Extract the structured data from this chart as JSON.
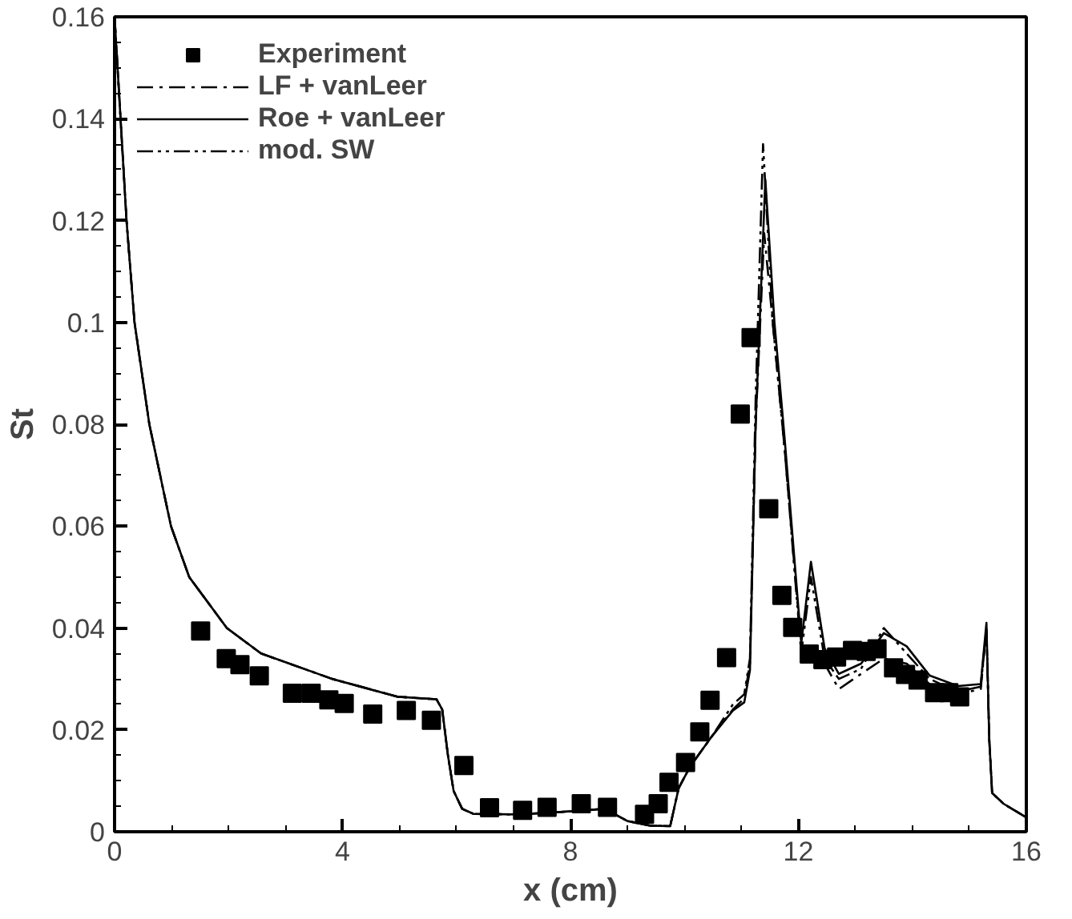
{
  "chart_data": {
    "type": "line",
    "xlabel": "x (cm)",
    "ylabel": "St",
    "xlim": [
      0,
      16
    ],
    "ylim": [
      0,
      0.16
    ],
    "xticks": [
      0,
      4,
      8,
      12,
      16
    ],
    "yticks": [
      0,
      0.02,
      0.04,
      0.06,
      0.08,
      {
        "value": 0.1,
        "label": "0.1"
      },
      0.12,
      0.14,
      0.16
    ],
    "grid": false,
    "legend": "top left",
    "series": [
      {
        "name": "Experiment",
        "type": "scatter",
        "marker": "square",
        "color": "#000000",
        "x": [
          1.51,
          1.96,
          2.2,
          2.54,
          3.12,
          3.45,
          3.76,
          4.03,
          4.53,
          5.12,
          5.56,
          6.13,
          6.58,
          7.16,
          7.59,
          8.19,
          8.65,
          9.3,
          9.54,
          9.73,
          10.02,
          10.27,
          10.45,
          10.74,
          10.98,
          11.17,
          11.48,
          11.71,
          11.9,
          12.19,
          12.43,
          12.67,
          12.95,
          13.19,
          13.38,
          13.67,
          13.88,
          14.1,
          14.39,
          14.64,
          14.83
        ],
        "values": [
          0.0394,
          0.034,
          0.0328,
          0.0306,
          0.0272,
          0.0272,
          0.0259,
          0.0252,
          0.0231,
          0.0238,
          0.0219,
          0.013,
          0.0047,
          0.0042,
          0.0048,
          0.0055,
          0.0048,
          0.0034,
          0.0055,
          0.0097,
          0.0136,
          0.0196,
          0.0258,
          0.0342,
          0.082,
          0.097,
          0.0634,
          0.0464,
          0.0401,
          0.0349,
          0.0338,
          0.0343,
          0.0356,
          0.0354,
          0.0359,
          0.0322,
          0.0309,
          0.0298,
          0.0273,
          0.0273,
          0.0265
        ]
      },
      {
        "name": "LF + vanLeer",
        "line_style": "dashdot",
        "color": "#000000",
        "x": [
          0,
          0.21,
          0.35,
          0.61,
          0.99,
          1.31,
          1.97,
          2.57,
          3.82,
          4.97,
          5.65,
          5.75,
          5.85,
          5.95,
          6.1,
          6.3,
          7.1,
          8.0,
          8.6,
          9.0,
          9.4,
          9.75,
          9.9,
          10.1,
          10.5,
          10.85,
          11.05,
          11.15,
          11.25,
          11.4,
          11.55,
          11.76,
          12.05,
          12.22,
          12.46,
          12.71,
          13.1,
          13.5,
          13.9,
          14.3,
          14.8,
          15.2,
          15.3,
          15.35,
          15.4,
          15.6,
          16
        ],
        "values": [
          0.16,
          0.12,
          0.1,
          0.08,
          0.06,
          0.05,
          0.04,
          0.035,
          0.03,
          0.0265,
          0.026,
          0.024,
          0.015,
          0.008,
          0.0045,
          0.0035,
          0.0034,
          0.004,
          0.0045,
          0.0021,
          0.0012,
          0.0011,
          0.0086,
          0.0128,
          0.019,
          0.024,
          0.0262,
          0.033,
          0.08,
          0.1175,
          0.1,
          0.075,
          0.036,
          0.035,
          0.033,
          0.028,
          0.031,
          0.034,
          0.033,
          0.029,
          0.027,
          0.028,
          0.04,
          0.018,
          0.0076,
          0.0055,
          0.0028
        ]
      },
      {
        "name": "Roe + vanLeer",
        "line_style": "solid",
        "color": "#000000",
        "x": [
          0,
          0.21,
          0.35,
          0.61,
          0.99,
          1.31,
          1.97,
          2.57,
          3.82,
          4.97,
          5.65,
          5.75,
          5.85,
          5.95,
          6.1,
          6.3,
          7.1,
          8.0,
          8.6,
          9.0,
          9.4,
          9.75,
          9.9,
          10.1,
          10.5,
          10.85,
          11.05,
          11.15,
          11.25,
          11.42,
          11.58,
          11.76,
          12.05,
          12.22,
          12.46,
          12.71,
          13.1,
          13.5,
          13.9,
          14.3,
          14.8,
          15.2,
          15.3,
          15.35,
          15.4,
          15.6,
          16
        ],
        "values": [
          0.16,
          0.12,
          0.1,
          0.08,
          0.06,
          0.05,
          0.04,
          0.035,
          0.03,
          0.0265,
          0.026,
          0.024,
          0.015,
          0.008,
          0.0045,
          0.0035,
          0.0034,
          0.004,
          0.0045,
          0.0021,
          0.0012,
          0.0011,
          0.0086,
          0.0128,
          0.019,
          0.0238,
          0.0254,
          0.0317,
          0.08,
          0.128,
          0.1,
          0.077,
          0.037,
          0.053,
          0.036,
          0.031,
          0.033,
          0.039,
          0.0364,
          0.0307,
          0.0286,
          0.029,
          0.041,
          0.018,
          0.0076,
          0.0055,
          0.0028
        ]
      },
      {
        "name": "mod. SW",
        "line_style": "dashdotdot",
        "color": "#000000",
        "x": [
          0,
          0.21,
          0.35,
          0.61,
          0.99,
          1.31,
          1.97,
          2.57,
          3.82,
          4.97,
          5.65,
          5.75,
          5.85,
          5.95,
          6.1,
          6.3,
          7.1,
          8.0,
          8.6,
          9.0,
          9.4,
          9.75,
          9.9,
          10.1,
          10.5,
          10.85,
          11.05,
          11.15,
          11.25,
          11.38,
          11.55,
          11.76,
          12.05,
          12.22,
          12.46,
          12.71,
          13.1,
          13.5,
          13.9,
          14.3,
          14.8,
          15.2,
          15.3,
          15.35,
          15.4,
          15.6,
          16
        ],
        "values": [
          0.16,
          0.12,
          0.1,
          0.08,
          0.06,
          0.05,
          0.04,
          0.035,
          0.03,
          0.0265,
          0.026,
          0.024,
          0.015,
          0.008,
          0.0045,
          0.0035,
          0.0034,
          0.004,
          0.0045,
          0.0021,
          0.0012,
          0.0011,
          0.0086,
          0.0128,
          0.019,
          0.025,
          0.027,
          0.034,
          0.085,
          0.135,
          0.1,
          0.075,
          0.035,
          0.05,
          0.034,
          0.03,
          0.032,
          0.04,
          0.035,
          0.03,
          0.0275,
          0.0285,
          0.04,
          0.018,
          0.0076,
          0.0055,
          0.0028
        ]
      }
    ]
  }
}
